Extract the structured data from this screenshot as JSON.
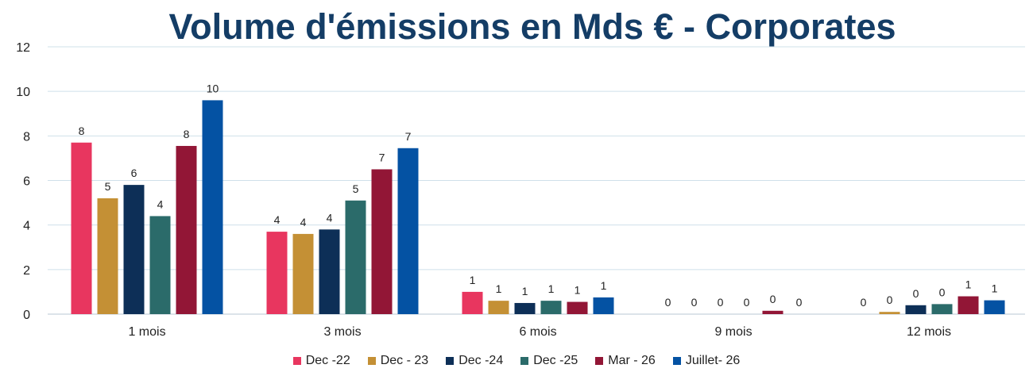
{
  "chart_data": {
    "type": "bar",
    "title": "Volume d'émissions en Mds € - Corporates",
    "xlabel": "",
    "ylabel": "",
    "ylim": [
      0,
      12
    ],
    "yticks": [
      0,
      2,
      4,
      6,
      8,
      10,
      12
    ],
    "grid": true,
    "legend_position": "bottom",
    "categories": [
      "1 mois",
      "3 mois",
      "6 mois",
      "9 mois",
      "12 mois"
    ],
    "series": [
      {
        "name": "Dec -22",
        "color": "#e8365f",
        "values": [
          7.7,
          3.7,
          1.0,
          0.0,
          0.0
        ],
        "labels": [
          "8",
          "4",
          "1",
          "0",
          "0"
        ]
      },
      {
        "name": "Dec - 23",
        "color": "#c49035",
        "values": [
          5.2,
          3.6,
          0.6,
          0.0,
          0.1
        ],
        "labels": [
          "5",
          "4",
          "1",
          "0",
          "0"
        ]
      },
      {
        "name": "Dec -24",
        "color": "#0d2f57",
        "values": [
          5.8,
          3.8,
          0.5,
          0.0,
          0.4
        ],
        "labels": [
          "6",
          "4",
          "1",
          "0",
          "0"
        ]
      },
      {
        "name": "Dec -25",
        "color": "#2b6b6a",
        "values": [
          4.4,
          5.1,
          0.6,
          0.0,
          0.45
        ],
        "labels": [
          "4",
          "5",
          "1",
          "0",
          "0"
        ]
      },
      {
        "name": "Mar - 26",
        "color": "#921636",
        "values": [
          7.55,
          6.5,
          0.55,
          0.15,
          0.8
        ],
        "labels": [
          "8",
          "7",
          "1",
          "0",
          "1"
        ]
      },
      {
        "name": "Juillet- 26",
        "color": "#0452a3",
        "values": [
          9.6,
          7.45,
          0.75,
          0.0,
          0.62
        ],
        "labels": [
          "10",
          "7",
          "1",
          "0",
          "1"
        ]
      }
    ]
  }
}
